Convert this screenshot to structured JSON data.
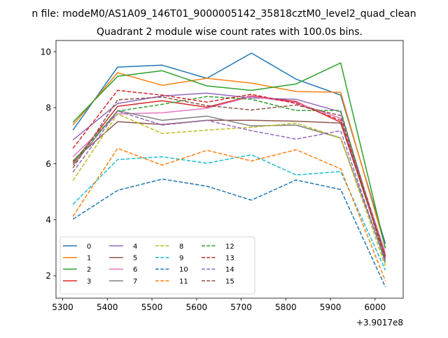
{
  "chart_data": {
    "type": "line",
    "suptitle": "n file: modeM0/AS1A09_146T01_9000005142_35818cztM0_level2_quad_clean",
    "title": "Quadrant 2 module wise count rates with 100.0s bins.",
    "xlabel": "",
    "ylabel": "",
    "x_offset_label": "+3.9017e8",
    "x": [
      5323,
      5423,
      5523,
      5623,
      5723,
      5823,
      5923,
      6023
    ],
    "xlim": [
      5285,
      6063
    ],
    "ylim": [
      1.2,
      10.4
    ],
    "xticks": [
      5300,
      5400,
      5500,
      5600,
      5700,
      5800,
      5900,
      6000
    ],
    "yticks": [
      2,
      4,
      6,
      8,
      10
    ],
    "grid": false,
    "legend": {
      "placement": "lower-left",
      "columns": 4
    },
    "series": [
      {
        "name": "0",
        "color": "#1f77b4",
        "dash": "solid",
        "values": [
          7.2,
          9.45,
          9.52,
          9.05,
          9.95,
          9.02,
          8.45,
          3.15
        ]
      },
      {
        "name": "1",
        "color": "#ff7f0e",
        "dash": "solid",
        "values": [
          7.38,
          9.25,
          8.8,
          9.05,
          8.88,
          8.58,
          8.55,
          3.02
        ]
      },
      {
        "name": "2",
        "color": "#2ca02c",
        "dash": "solid",
        "values": [
          7.48,
          9.12,
          9.32,
          8.78,
          8.62,
          8.85,
          9.6,
          2.98
        ]
      },
      {
        "name": "3",
        "color": "#d62728",
        "dash": "solid",
        "values": [
          6.02,
          8.05,
          8.25,
          8.02,
          8.42,
          8.22,
          7.48,
          2.72
        ]
      },
      {
        "name": "4",
        "color": "#9467bd",
        "dash": "solid",
        "values": [
          6.85,
          8.15,
          8.42,
          8.52,
          8.35,
          8.3,
          7.85,
          2.62
        ]
      },
      {
        "name": "5",
        "color": "#8c564b",
        "dash": "solid",
        "values": [
          6.1,
          7.5,
          7.4,
          7.55,
          7.55,
          7.52,
          7.45,
          2.68
        ]
      },
      {
        "name": "6",
        "color": "#e377c2",
        "dash": "solid",
        "values": [
          6.25,
          7.78,
          7.82,
          7.98,
          8.4,
          8.18,
          7.62,
          2.82
        ]
      },
      {
        "name": "7",
        "color": "#7f7f7f",
        "dash": "solid",
        "values": [
          5.95,
          7.9,
          7.55,
          7.7,
          7.35,
          7.38,
          6.92,
          2.55
        ]
      },
      {
        "name": "8",
        "color": "#bcbd22",
        "dash": "dashed",
        "values": [
          5.4,
          7.78,
          7.08,
          7.2,
          7.3,
          7.45,
          6.92,
          2.35
        ]
      },
      {
        "name": "9",
        "color": "#17becf",
        "dash": "dashed",
        "values": [
          4.55,
          6.15,
          6.25,
          6.02,
          6.32,
          5.6,
          5.72,
          2.2
        ]
      },
      {
        "name": "10",
        "color": "#1f77b4",
        "dash": "dashed",
        "values": [
          4.02,
          5.05,
          5.45,
          5.2,
          4.7,
          5.42,
          5.08,
          1.6
        ]
      },
      {
        "name": "11",
        "color": "#ff7f0e",
        "dash": "dashed",
        "values": [
          4.12,
          6.55,
          5.95,
          6.48,
          6.1,
          6.5,
          5.82,
          1.82
        ]
      },
      {
        "name": "12",
        "color": "#2ca02c",
        "dash": "dashed",
        "values": [
          6.08,
          7.88,
          8.12,
          8.4,
          8.3,
          7.9,
          7.9,
          2.45
        ]
      },
      {
        "name": "13",
        "color": "#d62728",
        "dash": "dashed",
        "values": [
          6.55,
          8.62,
          8.45,
          8.2,
          8.48,
          8.15,
          7.55,
          2.62
        ]
      },
      {
        "name": "14",
        "color": "#9467bd",
        "dash": "dashed",
        "values": [
          5.7,
          7.88,
          7.38,
          7.55,
          7.18,
          6.88,
          7.18,
          2.48
        ]
      },
      {
        "name": "15",
        "color": "#8c564b",
        "dash": "dashed",
        "values": [
          5.85,
          8.28,
          8.38,
          8.08,
          7.92,
          8.1,
          7.72,
          2.7
        ]
      }
    ]
  }
}
